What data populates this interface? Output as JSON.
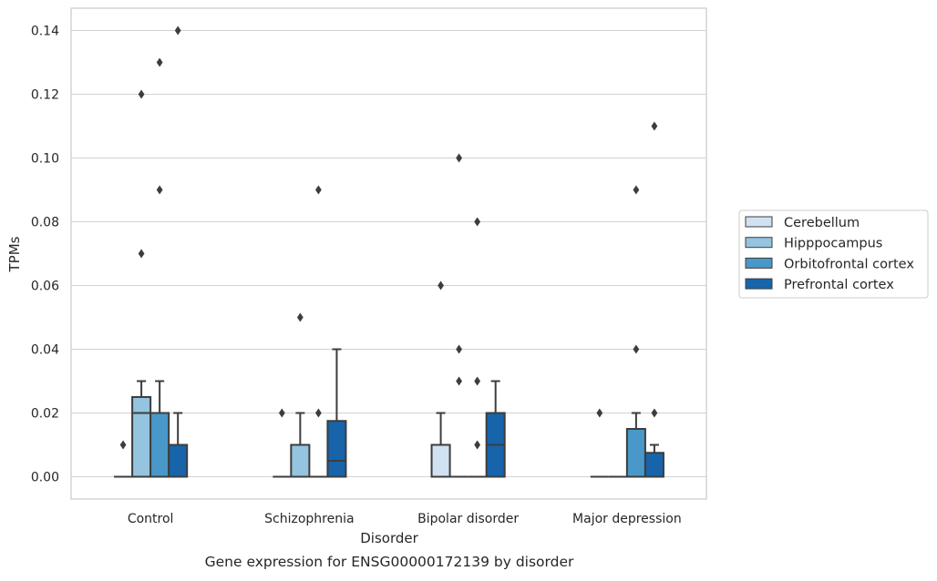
{
  "chart_data": {
    "type": "box",
    "xlabel": "Disorder",
    "ylabel": "TPMs",
    "caption": "Gene expression for ENSG00000172139 by disorder",
    "ylim": [
      -0.007,
      0.147
    ],
    "y_ticks": [
      0.0,
      0.02,
      0.04,
      0.06,
      0.08,
      0.1,
      0.12,
      0.14
    ],
    "y_tick_labels": [
      "0.00",
      "0.02",
      "0.04",
      "0.06",
      "0.08",
      "0.10",
      "0.12",
      "0.14"
    ],
    "grid": "horizontal",
    "legend_position": "right",
    "categories": [
      "Control",
      "Schizophrenia",
      "Bipolar disorder",
      "Major depression"
    ],
    "series": [
      {
        "name": "Cerebellum",
        "color": "#d0e1f2",
        "boxes": [
          {
            "q1": 0.0,
            "median": 0.0,
            "q3": 0.0,
            "whisker_low": 0.0,
            "whisker_high": 0.0,
            "outliers": [
              0.01
            ]
          },
          {
            "q1": 0.0,
            "median": 0.0,
            "q3": 0.0,
            "whisker_low": 0.0,
            "whisker_high": 0.0,
            "outliers": [
              0.02
            ]
          },
          {
            "q1": 0.0,
            "median": 0.0,
            "q3": 0.01,
            "whisker_low": 0.0,
            "whisker_high": 0.02,
            "outliers": [
              0.06
            ]
          },
          {
            "q1": 0.0,
            "median": 0.0,
            "q3": 0.0,
            "whisker_low": 0.0,
            "whisker_high": 0.0,
            "outliers": [
              0.02
            ]
          }
        ]
      },
      {
        "name": "Hipppocampus",
        "color": "#94c4df",
        "boxes": [
          {
            "q1": 0.0,
            "median": 0.02,
            "q3": 0.025,
            "whisker_low": 0.0,
            "whisker_high": 0.03,
            "outliers": [
              0.07,
              0.12
            ]
          },
          {
            "q1": 0.0,
            "median": 0.0,
            "q3": 0.01,
            "whisker_low": 0.0,
            "whisker_high": 0.02,
            "outliers": [
              0.05
            ]
          },
          {
            "q1": 0.0,
            "median": 0.0,
            "q3": 0.0,
            "whisker_low": 0.0,
            "whisker_high": 0.0,
            "outliers": [
              0.03,
              0.04,
              0.1
            ]
          },
          {
            "q1": 0.0,
            "median": 0.0,
            "q3": 0.0,
            "whisker_low": 0.0,
            "whisker_high": 0.0,
            "outliers": []
          }
        ]
      },
      {
        "name": "Orbitofrontal cortex",
        "color": "#4a98c9",
        "boxes": [
          {
            "q1": 0.0,
            "median": 0.02,
            "q3": 0.02,
            "whisker_low": 0.0,
            "whisker_high": 0.03,
            "outliers": [
              0.09,
              0.13
            ]
          },
          {
            "q1": 0.0,
            "median": 0.0,
            "q3": 0.0,
            "whisker_low": 0.0,
            "whisker_high": 0.0,
            "outliers": [
              0.02,
              0.09
            ]
          },
          {
            "q1": 0.0,
            "median": 0.0,
            "q3": 0.0,
            "whisker_low": 0.0,
            "whisker_high": 0.0,
            "outliers": [
              0.01,
              0.03,
              0.08
            ]
          },
          {
            "q1": 0.0,
            "median": 0.0,
            "q3": 0.015,
            "whisker_low": 0.0,
            "whisker_high": 0.02,
            "outliers": [
              0.04,
              0.09
            ]
          }
        ]
      },
      {
        "name": "Prefrontal cortex",
        "color": "#1764ab",
        "boxes": [
          {
            "q1": 0.0,
            "median": 0.0,
            "q3": 0.01,
            "whisker_low": 0.0,
            "whisker_high": 0.02,
            "outliers": [
              0.14
            ]
          },
          {
            "q1": 0.0,
            "median": 0.005,
            "q3": 0.0175,
            "whisker_low": 0.0,
            "whisker_high": 0.04,
            "outliers": []
          },
          {
            "q1": 0.0,
            "median": 0.01,
            "q3": 0.02,
            "whisker_low": 0.0,
            "whisker_high": 0.03,
            "outliers": []
          },
          {
            "q1": 0.0,
            "median": 0.0,
            "q3": 0.0075,
            "whisker_low": 0.0,
            "whisker_high": 0.01,
            "outliers": [
              0.02,
              0.11
            ]
          }
        ]
      }
    ]
  }
}
